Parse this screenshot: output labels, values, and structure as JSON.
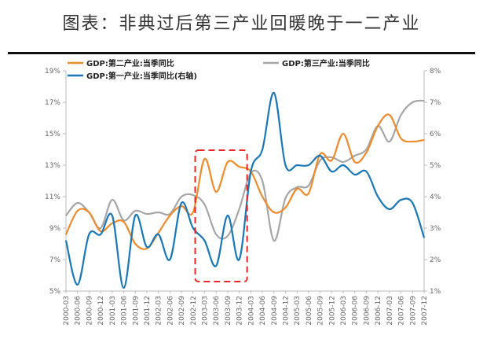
{
  "title": "图表：非典过后第三产业回暖晚于一二产业",
  "chart_data": {
    "type": "line",
    "title": "图表：非典过后第三产业回暖晚于一二产业",
    "x": [
      "2000-03",
      "2000-06",
      "2000-09",
      "2000-12",
      "2001-03",
      "2001-06",
      "2001-09",
      "2001-12",
      "2002-03",
      "2002-06",
      "2002-09",
      "2002-12",
      "2003-03",
      "2003-06",
      "2003-09",
      "2003-12",
      "2004-03",
      "2004-06",
      "2004-09",
      "2004-12",
      "2005-03",
      "2005-06",
      "2005-09",
      "2005-12",
      "2006-03",
      "2006-06",
      "2006-09",
      "2006-12",
      "2007-03",
      "2007-06",
      "2007-09",
      "2007-12"
    ],
    "left_axis": {
      "ylim": [
        5,
        19
      ],
      "ticks": [
        "5%",
        "7%",
        "9%",
        "11%",
        "13%",
        "15%",
        "17%",
        "19%"
      ],
      "tick_values": [
        5,
        7,
        9,
        11,
        13,
        15,
        17,
        19
      ]
    },
    "right_axis": {
      "ylim": [
        1,
        8
      ],
      "ticks": [
        "1%",
        "2%",
        "3%",
        "4%",
        "5%",
        "6%",
        "7%",
        "8%"
      ],
      "tick_values": [
        1,
        2,
        3,
        4,
        5,
        6,
        7,
        8
      ]
    },
    "series": [
      {
        "name": "GDP:第二产业:当季同比",
        "color": "#ED8B2D",
        "axis": "left",
        "values": [
          8.6,
          10.1,
          10.0,
          8.8,
          9.3,
          9.4,
          8.0,
          7.7,
          8.7,
          9.8,
          10.4,
          10.0,
          13.4,
          11.3,
          13.2,
          12.9,
          12.6,
          11.0,
          10.0,
          10.3,
          11.5,
          11.2,
          13.7,
          13.3,
          15.0,
          13.2,
          13.8,
          15.5,
          16.2,
          14.7,
          14.5,
          14.6
        ]
      },
      {
        "name": "GDP:第三产业:当季同比",
        "color": "#A6A6A6",
        "axis": "left",
        "values": [
          9.8,
          10.6,
          10.0,
          9.0,
          10.8,
          9.5,
          10.1,
          9.9,
          10.0,
          9.9,
          11.0,
          11.1,
          10.5,
          8.6,
          8.5,
          10.2,
          12.5,
          12.0,
          8.2,
          10.9,
          11.6,
          11.7,
          13.3,
          13.5,
          13.2,
          13.6,
          14.0,
          15.5,
          14.5,
          16.2,
          17.0,
          17.1
        ]
      },
      {
        "name": "GDP:第一产业:当季同比(右轴)",
        "color": "#1A77B8",
        "axis": "right",
        "values": [
          2.6,
          1.2,
          2.8,
          2.8,
          3.4,
          1.1,
          3.4,
          2.4,
          2.8,
          2.0,
          3.8,
          3.0,
          2.6,
          1.8,
          3.4,
          2.0,
          4.8,
          5.5,
          7.3,
          5.0,
          5.0,
          5.0,
          5.3,
          4.8,
          5.0,
          4.7,
          4.8,
          4.0,
          3.6,
          3.9,
          3.8,
          2.7
        ]
      }
    ],
    "annotation": "dashed red box around 2003-03 to 2003-12"
  }
}
